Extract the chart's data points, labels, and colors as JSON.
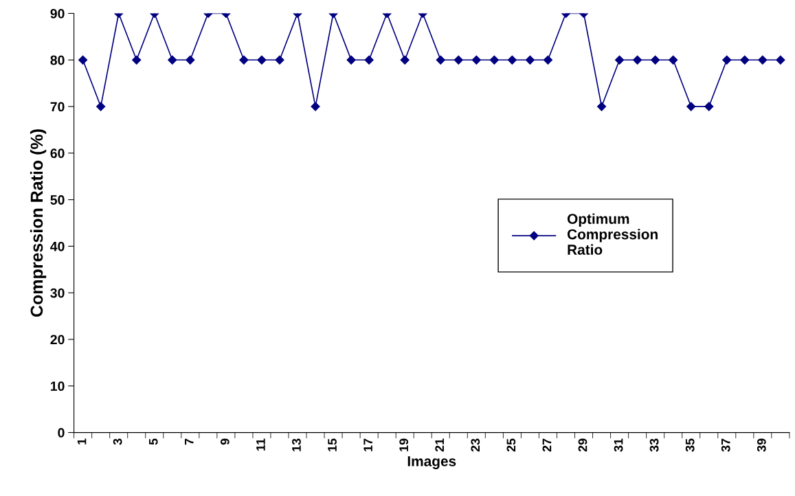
{
  "chart_data": {
    "type": "line",
    "xlabel": "Images",
    "ylabel": "Compression Ratio (%)",
    "categories": [
      "1",
      null,
      "3",
      null,
      "5",
      null,
      "7",
      null,
      "9",
      null,
      "11",
      null,
      "13",
      null,
      "15",
      null,
      "17",
      null,
      "19",
      null,
      "21",
      null,
      "23",
      null,
      "25",
      null,
      "27",
      null,
      "29",
      null,
      "31",
      null,
      "33",
      null,
      "35",
      null,
      "37",
      null,
      "39",
      null
    ],
    "series": [
      {
        "name": "Optimum\nCompression\nRatio",
        "color": "#000080",
        "values": [
          80,
          70,
          90,
          80,
          90,
          80,
          80,
          90,
          90,
          80,
          80,
          80,
          90,
          70,
          90,
          80,
          80,
          90,
          80,
          90,
          80,
          80,
          80,
          80,
          80,
          80,
          80,
          90,
          90,
          70,
          80,
          80,
          80,
          80,
          70,
          70,
          80,
          80,
          80,
          80
        ]
      }
    ],
    "ylim": [
      0,
      90
    ],
    "yticks": [
      0,
      10,
      20,
      30,
      40,
      50,
      60,
      70,
      80,
      90
    ],
    "grid": false,
    "legend": "right",
    "marker": "diamond",
    "line_style": "solid"
  }
}
